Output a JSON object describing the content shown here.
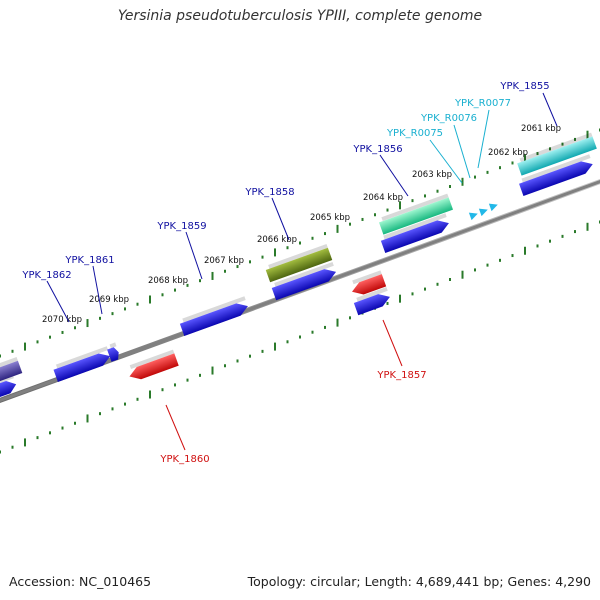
{
  "title": "Yersinia pseudotuberculosis YPIII, complete genome",
  "footer": {
    "accession": "Accession: NC_010465",
    "topology": "Topology: circular; Length: 4,689,441 bp; Genes: 4,290"
  },
  "colors": {
    "blue": "#1a12e8",
    "red": "#f01010",
    "olive": "#6e8a1a",
    "teal": "#1ec4c4",
    "aquamarine": "#2ee0a0",
    "purple": "#4a3fa0",
    "tick": "#2a7a2a",
    "backbone": "#808080",
    "label_blue": "#1010a0",
    "label_red": "#d01010",
    "label_cyan": "#1ab0d0",
    "kbp_text": "#111111"
  },
  "kbp_labels": [
    "2061 kbp",
    "2062 kbp",
    "2063 kbp",
    "2064 kbp",
    "2065 kbp",
    "2066 kbp",
    "2067 kbp",
    "2068 kbp",
    "2069 kbp",
    "2070 kbp"
  ],
  "gene_labels": [
    {
      "id": "YPK_1855",
      "color": "blue"
    },
    {
      "id": "YPK_R0077",
      "color": "cyan"
    },
    {
      "id": "YPK_R0076",
      "color": "cyan"
    },
    {
      "id": "YPK_R0075",
      "color": "cyan"
    },
    {
      "id": "YPK_1856",
      "color": "blue"
    },
    {
      "id": "YPK_1858",
      "color": "blue"
    },
    {
      "id": "YPK_1859",
      "color": "blue"
    },
    {
      "id": "YPK_1861",
      "color": "blue"
    },
    {
      "id": "YPK_1862",
      "color": "blue"
    },
    {
      "id": "YPK_1857",
      "color": "red"
    },
    {
      "id": "YPK_1860",
      "color": "red"
    }
  ]
}
